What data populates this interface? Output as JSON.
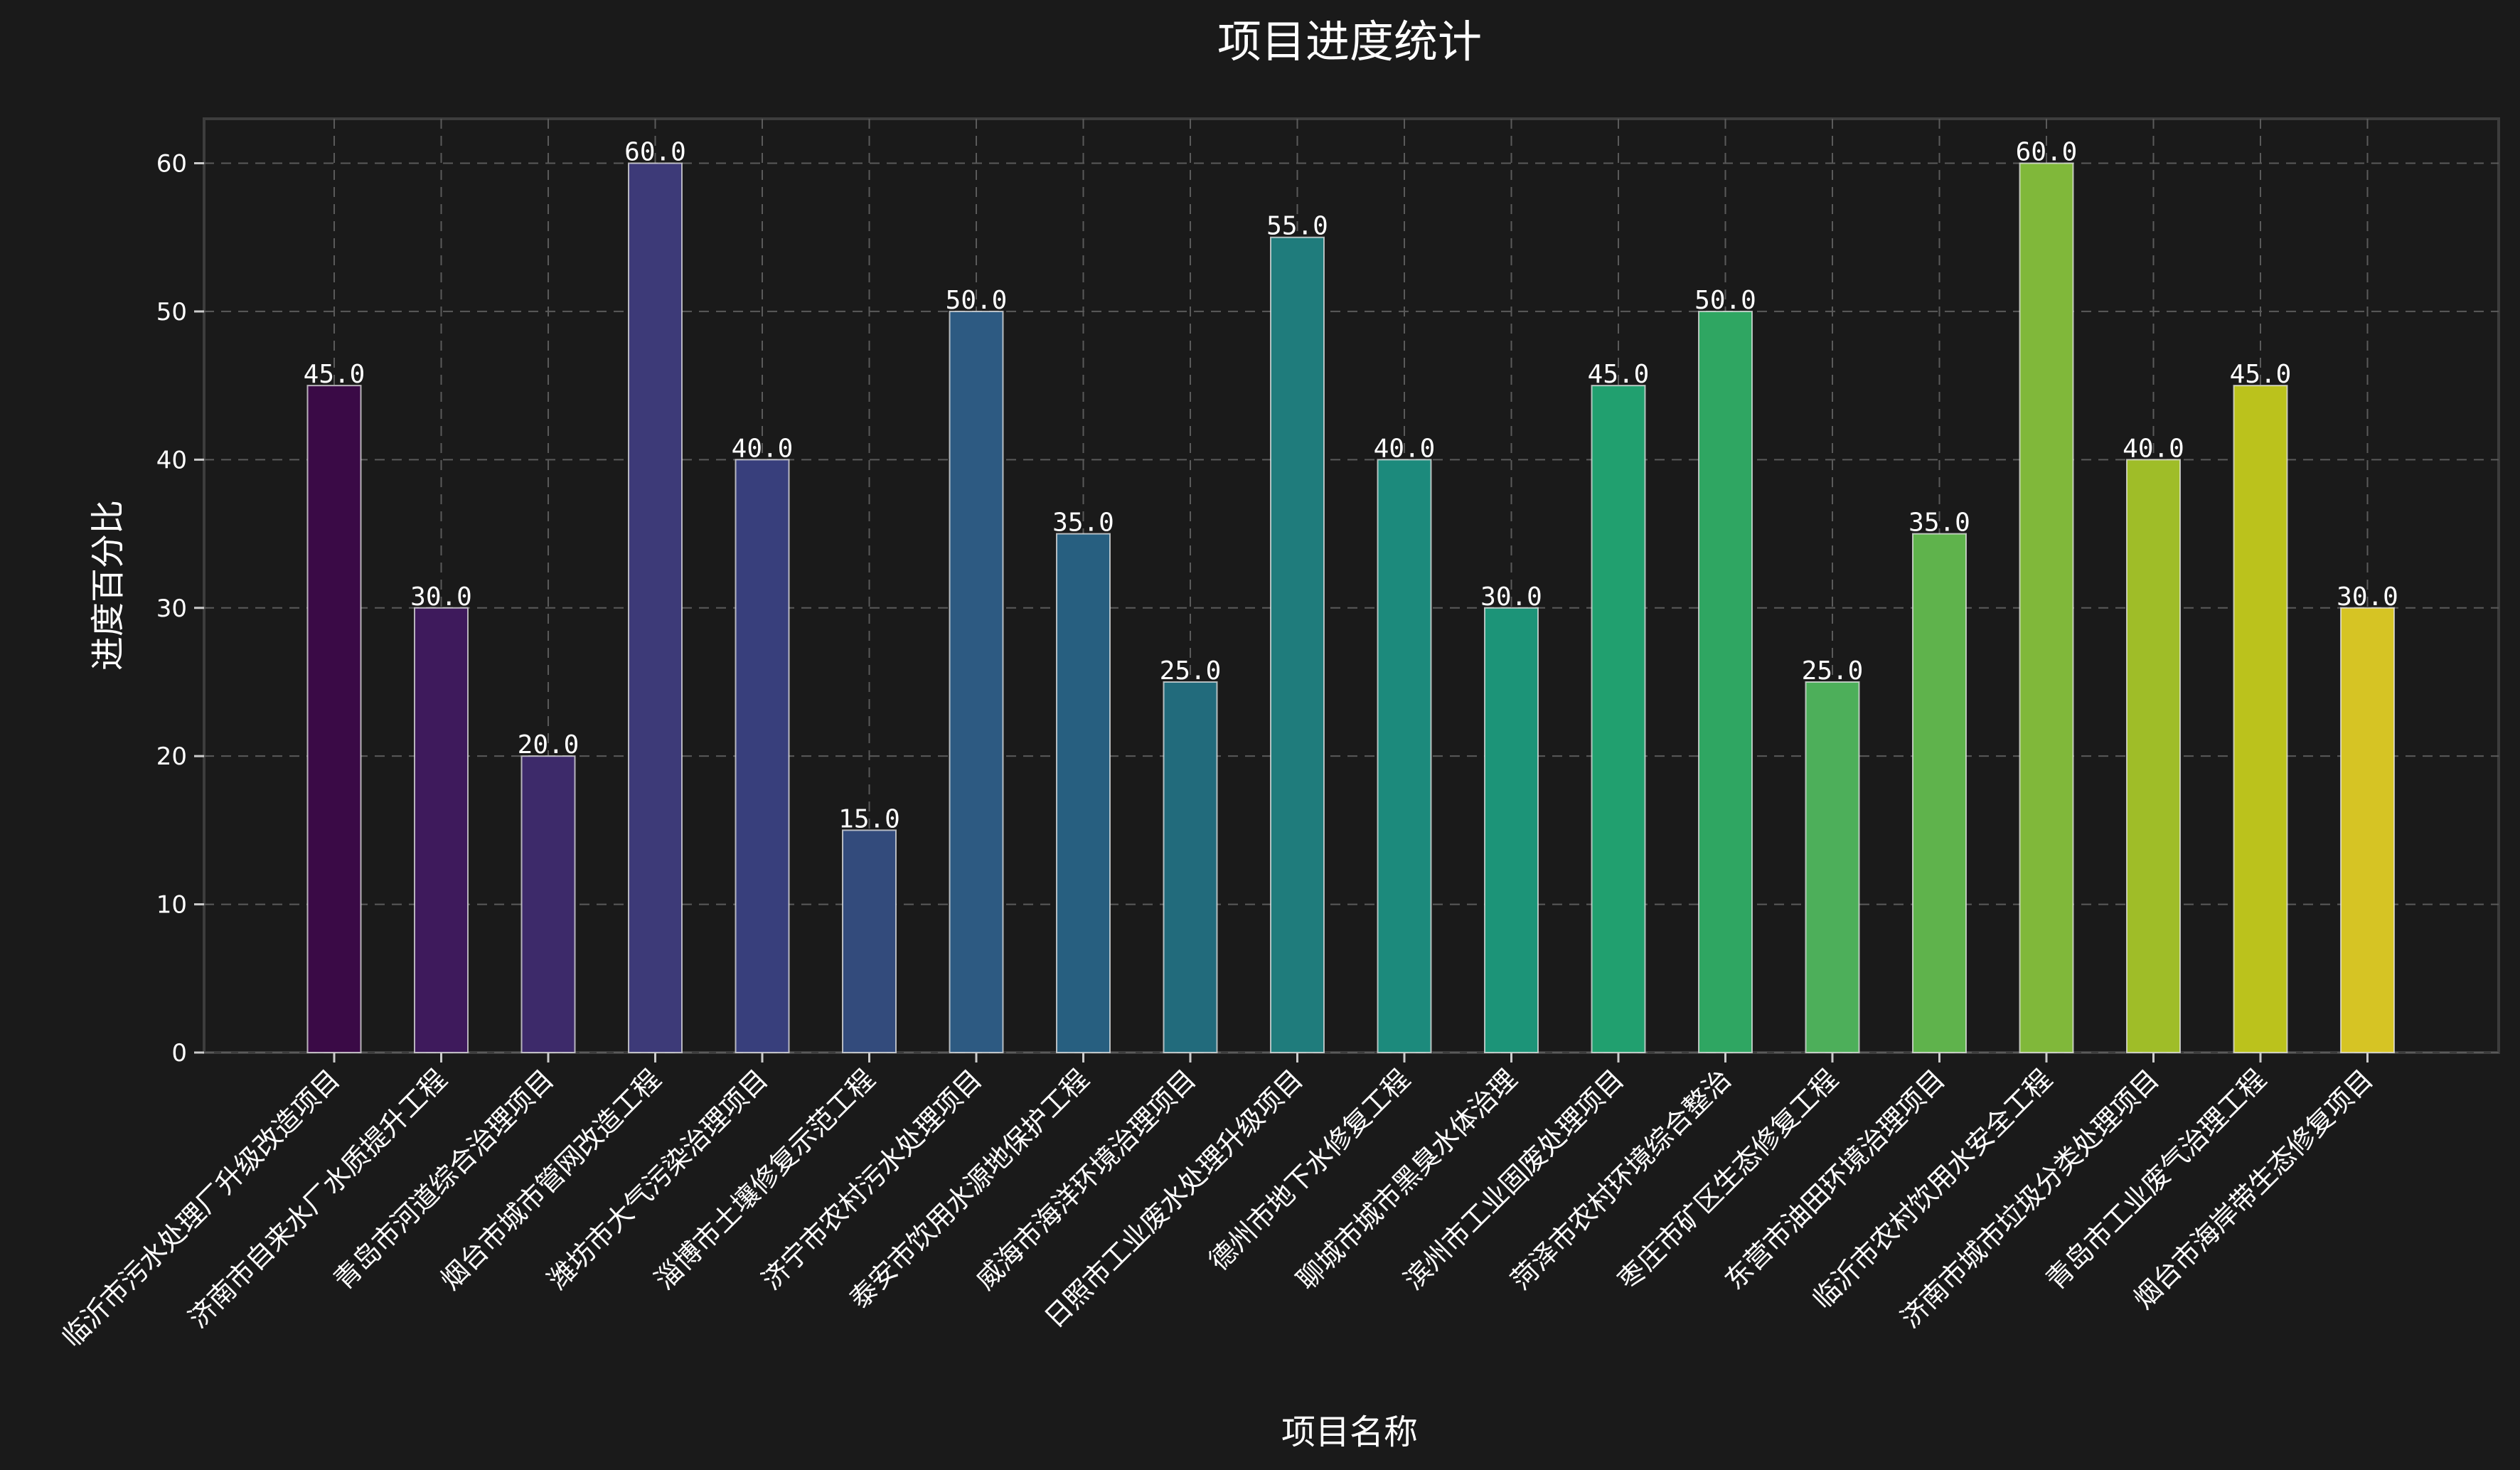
{
  "chart_data": {
    "type": "bar",
    "title": "项目进度统计",
    "xlabel": "项目名称",
    "ylabel": "进度百分比",
    "ylim": [
      0,
      63
    ],
    "yticks": [
      0,
      10,
      20,
      30,
      40,
      50,
      60
    ],
    "grid": true,
    "categories": [
      "临沂市污水处理厂升级改造项目",
      "济南市自来水厂水质提升工程",
      "青岛市河道综合治理项目",
      "烟台市城市管网改造工程",
      "潍坊市大气污染治理项目",
      "淄博市土壤修复示范工程",
      "济宁市农村污水处理项目",
      "泰安市饮用水源地保护工程",
      "威海市海洋环境治理项目",
      "日照市工业废水处理升级项目",
      "德州市地下水修复工程",
      "聊城市城市黑臭水体治理",
      "滨州市工业固废处理项目",
      "菏泽市农村环境综合整治",
      "枣庄市矿区生态修复工程",
      "东营市油田环境治理项目",
      "临沂市农村饮用水安全工程",
      "济南市城市垃圾分类处理项目",
      "青岛市工业废气治理工程",
      "烟台市海岸带生态修复项目"
    ],
    "values": [
      45.0,
      30.0,
      20.0,
      60.0,
      40.0,
      15.0,
      50.0,
      35.0,
      25.0,
      55.0,
      40.0,
      30.0,
      45.0,
      50.0,
      25.0,
      35.0,
      60.0,
      40.0,
      45.0,
      30.0
    ],
    "value_labels": [
      "45.0",
      "30.0",
      "20.0",
      "60.0",
      "40.0",
      "15.0",
      "50.0",
      "35.0",
      "25.0",
      "55.0",
      "40.0",
      "30.0",
      "45.0",
      "50.0",
      "25.0",
      "35.0",
      "60.0",
      "40.0",
      "45.0",
      "30.0"
    ],
    "colors": [
      "#440154",
      "#481a6c",
      "#472f7d",
      "#414487",
      "#39568c",
      "#31688e",
      "#2a788e",
      "#23888e",
      "#1f988b",
      "#22a884",
      "#35b779",
      "#54c568",
      "#7ad151",
      "#a5db36",
      "#d2e21b",
      "#fde725"
    ],
    "bar_colors": [
      "#3a0a46",
      "#3e1a5c",
      "#3d2a6a",
      "#3d3a78",
      "#383f7c",
      "#334b7c",
      "#2d5a82",
      "#275f80",
      "#226b7c",
      "#1f7c7c",
      "#1c8a7c",
      "#1c9478",
      "#21a06f",
      "#2fa662",
      "#4daf5a",
      "#5fb34c",
      "#80b83a",
      "#9fbd28",
      "#bbc21c",
      "#d6c424"
    ],
    "background": "#1a1a1a"
  }
}
